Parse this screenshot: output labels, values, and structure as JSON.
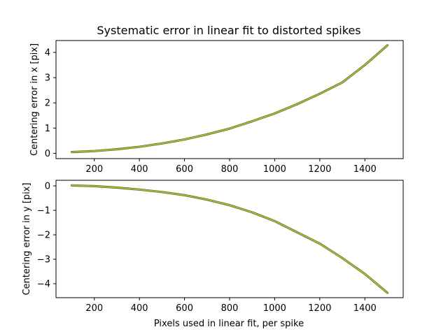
{
  "figure": {
    "title": "Systematic error in linear fit to distorted spikes",
    "xlabel": "Pixels used in linear fit, per spike"
  },
  "chart_data": [
    {
      "type": "line",
      "title": "Systematic error in linear fit to distorted spikes",
      "xlabel": "",
      "ylabel": "Centering error in x [pix]",
      "xlim": [
        30,
        1570
      ],
      "ylim": [
        -0.21,
        4.47
      ],
      "xticks": [
        200,
        400,
        600,
        800,
        1000,
        1200,
        1400
      ],
      "xtick_labels": [
        "200",
        "400",
        "600",
        "800",
        "1000",
        "1200",
        "1400"
      ],
      "yticks": [
        0,
        1,
        2,
        3,
        4
      ],
      "ytick_labels": [
        "0",
        "1",
        "2",
        "3",
        "4"
      ],
      "grid": false,
      "series": [
        {
          "color": "#9acd32",
          "x": [
            100,
            200,
            300,
            400,
            500,
            600,
            700,
            800,
            900,
            1000,
            1100,
            1200,
            1300,
            1400,
            1500
          ],
          "y": [
            0.05,
            0.09,
            0.16,
            0.26,
            0.39,
            0.55,
            0.75,
            0.98,
            1.27,
            1.58,
            1.95,
            2.36,
            2.81,
            3.5,
            4.28
          ]
        }
      ]
    },
    {
      "type": "line",
      "title": "",
      "xlabel": "Pixels used in linear fit, per spike",
      "ylabel": "Centering error in y [pix]",
      "xlim": [
        30,
        1570
      ],
      "ylim": [
        -4.57,
        0.23
      ],
      "xticks": [
        200,
        400,
        600,
        800,
        1000,
        1200,
        1400
      ],
      "xtick_labels": [
        "200",
        "400",
        "600",
        "800",
        "1000",
        "1200",
        "1400"
      ],
      "yticks": [
        0,
        -1,
        -2,
        -3,
        -4
      ],
      "ytick_labels": [
        "0",
        "−1",
        "−2",
        "−3",
        "−4"
      ],
      "grid": false,
      "series": [
        {
          "color": "#9acd32",
          "x": [
            100,
            200,
            300,
            400,
            500,
            600,
            700,
            800,
            900,
            1000,
            1100,
            1200,
            1300,
            1400,
            1500
          ],
          "y": [
            0.02,
            -0.01,
            -0.07,
            -0.15,
            -0.25,
            -0.38,
            -0.56,
            -0.79,
            -1.08,
            -1.44,
            -1.9,
            -2.36,
            -2.95,
            -3.6,
            -4.37
          ]
        }
      ]
    }
  ]
}
